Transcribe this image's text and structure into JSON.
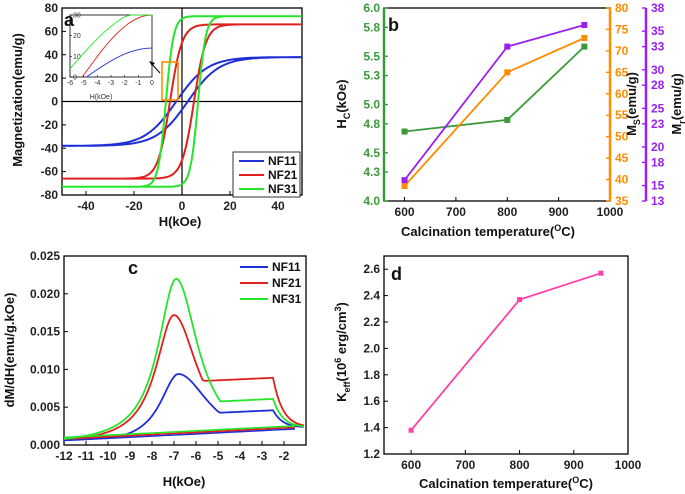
{
  "colors": {
    "nf11": "#1f2fd6",
    "nf21": "#e0201e",
    "nf31": "#25e62a",
    "green": "#3a9a3a",
    "orange": "#ff8c00",
    "purple": "#9b1ff0",
    "pink": "#ff3fa8",
    "zoom_box": "#ff8c00"
  },
  "chart_data": [
    {
      "panel": "a",
      "type": "line",
      "xlabel": "H(kOe)",
      "ylabel": "Magnetization(emu/g)",
      "xlim": [
        -50,
        50
      ],
      "ylim": [
        -80,
        80
      ],
      "xticks": [
        -40,
        -20,
        0,
        20,
        40
      ],
      "yticks": [
        -80,
        -60,
        -40,
        -20,
        0,
        20,
        40,
        60,
        80
      ],
      "series": [
        {
          "name": "NF11",
          "color_key": "nf11",
          "ms": 38,
          "hc": 2.4,
          "w": 13
        },
        {
          "name": "NF21",
          "color_key": "nf21",
          "ms": 66,
          "hc": 5.0,
          "w": 5
        },
        {
          "name": "NF31",
          "color_key": "nf31",
          "ms": 73,
          "hc": 6.7,
          "w": 3.2
        }
      ],
      "inset": {
        "xlabel": "H(kOe)",
        "xlim": [
          -6,
          0
        ],
        "ylim": [
          0,
          30
        ],
        "xticks": [
          -6,
          -5,
          -4,
          -3,
          -2,
          -1,
          0
        ],
        "yticks": [
          0,
          10,
          20,
          30
        ]
      }
    },
    {
      "panel": "b",
      "type": "line",
      "xlabel": "Calcination temperature(",
      "xlabel_sup": "O",
      "xlabel_tail": "C)",
      "x": [
        600,
        800,
        950
      ],
      "xlim": [
        560,
        1000
      ],
      "xticks": [
        600,
        700,
        800,
        900,
        1000
      ],
      "series": [
        {
          "name": "HC",
          "axis": "left",
          "color_key": "green",
          "values": [
            4.72,
            4.84,
            5.6
          ],
          "ylim": [
            4.0,
            6.0
          ],
          "yticks": [
            4.0,
            4.3,
            4.5,
            4.8,
            5.0,
            5.3,
            5.5,
            5.8,
            6.0
          ],
          "ylabel": "H",
          "ylabel_sub": "C",
          "ylabel_tail": "(kOe)"
        },
        {
          "name": "Ms",
          "axis": "right1",
          "color_key": "orange",
          "values": [
            38.5,
            65,
            73
          ],
          "ylim": [
            35,
            80
          ],
          "yticks": [
            35,
            40,
            45,
            50,
            55,
            60,
            65,
            70,
            75,
            80
          ],
          "ylabel": "M",
          "ylabel_sub": "S",
          "ylabel_tail": "(emu/g)"
        },
        {
          "name": "Mr",
          "axis": "right2",
          "color_key": "purple",
          "values": [
            15.7,
            33,
            35.8
          ],
          "ylim": [
            13,
            38
          ],
          "yticks": [
            13,
            15,
            18,
            20,
            23,
            25,
            28,
            30,
            33,
            35,
            38
          ],
          "ylabel": "M",
          "ylabel_sub": "r",
          "ylabel_tail": "(emu/g)"
        }
      ]
    },
    {
      "panel": "c",
      "type": "line",
      "xlabel": "H(kOe)",
      "ylabel": "dM/dH(emu/g.kOe)",
      "xlim": [
        -12,
        -1.0
      ],
      "ylim": [
        0,
        0.025
      ],
      "xticks": [
        -12,
        -11,
        -10,
        -9,
        -8,
        -7,
        -6,
        -5,
        -4,
        -3,
        -2
      ],
      "yticks": [
        "0.000",
        "0.005",
        "0.010",
        "0.015",
        "0.020",
        "0.025"
      ],
      "series": [
        {
          "name": "NF11",
          "color_key": "nf11",
          "peak": 0.0094,
          "peak_x": -6.8
        },
        {
          "name": "NF21",
          "color_key": "nf21",
          "peak": 0.0172,
          "peak_x": -7.0
        },
        {
          "name": "NF31",
          "color_key": "nf31",
          "peak": 0.022,
          "peak_x": -6.9
        }
      ]
    },
    {
      "panel": "d",
      "type": "line",
      "xlabel": "Calcination temperature(",
      "xlabel_sup": "O",
      "xlabel_tail": "C)",
      "ylabel": "K",
      "ylabel_sub": "eff",
      "ylabel_mid": "(10",
      "ylabel_sup": "6",
      "ylabel_tail": " erg/cm",
      "ylabel_sup2": "3",
      "ylabel_end": ")",
      "x": [
        600,
        800,
        950
      ],
      "values": [
        1.38,
        2.37,
        2.57
      ],
      "xlim": [
        550,
        1000
      ],
      "ylim": [
        1.2,
        2.7
      ],
      "xticks": [
        600,
        700,
        800,
        900,
        1000
      ],
      "yticks": [
        "1.2",
        "1.4",
        "1.6",
        "1.8",
        "2.0",
        "2.2",
        "2.4",
        "2.6"
      ]
    }
  ],
  "panel_labels": [
    "a",
    "b",
    "c",
    "d"
  ],
  "legend_names": [
    "NF11",
    "NF21",
    "NF31"
  ]
}
